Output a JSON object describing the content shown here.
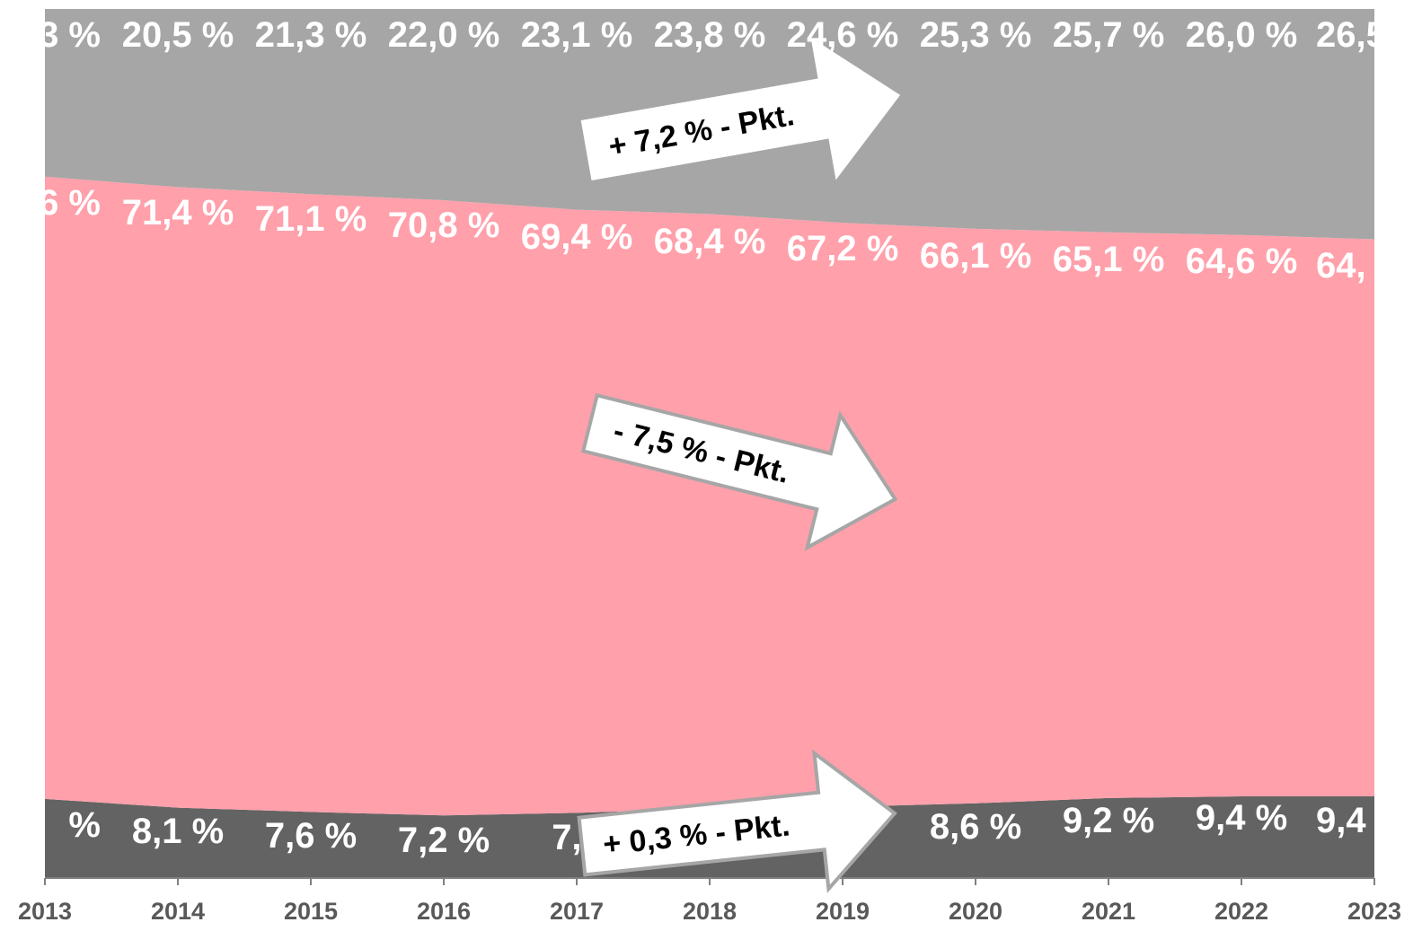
{
  "chart_data": {
    "type": "area",
    "stacked": true,
    "percent_stacked": true,
    "x": [
      "2013",
      "2014",
      "2015",
      "2016",
      "2017",
      "2018",
      "2019",
      "2020",
      "2021",
      "2022",
      "2023"
    ],
    "ylim": [
      0,
      100
    ],
    "series": [
      {
        "color": "#636363",
        "values": [
          9.1,
          8.1,
          7.6,
          7.2,
          7.5,
          8.0,
          8.2,
          8.6,
          9.2,
          9.4,
          9.4
        ],
        "labels": [
          "%",
          "8,1 %",
          "7,6 %",
          "7,2 %",
          "7,5",
          "",
          "",
          "8,6 %",
          "9,2 %",
          "9,4 %",
          "9,4"
        ]
      },
      {
        "color": "#ffa0ab",
        "values": [
          71.6,
          71.4,
          71.1,
          70.8,
          69.4,
          68.4,
          67.2,
          66.1,
          65.1,
          64.6,
          64.1
        ],
        "labels": [
          "6 %",
          "71,4 %",
          "71,1 %",
          "70,8 %",
          "69,4 %",
          "68,4 %",
          "67,2 %",
          "66,1 %",
          "65,1 %",
          "64,6 %",
          "64,"
        ]
      },
      {
        "color": "#a6a6a6",
        "values": [
          19.3,
          20.5,
          21.3,
          22.0,
          23.1,
          23.8,
          24.6,
          25.3,
          25.7,
          26.0,
          26.5
        ],
        "labels": [
          "3 %",
          "20,5 %",
          "21,3 %",
          "22,0 %",
          "23,1 %",
          "23,8 %",
          "24,6 %",
          "25,3 %",
          "25,7 %",
          "26,0 %",
          "26,5"
        ]
      }
    ],
    "annotations": [
      {
        "text": "+ 7,2 % - Pkt."
      },
      {
        "text": "- 7,5 % - Pkt."
      },
      {
        "text": "+ 0,3 % - Pkt."
      }
    ]
  }
}
